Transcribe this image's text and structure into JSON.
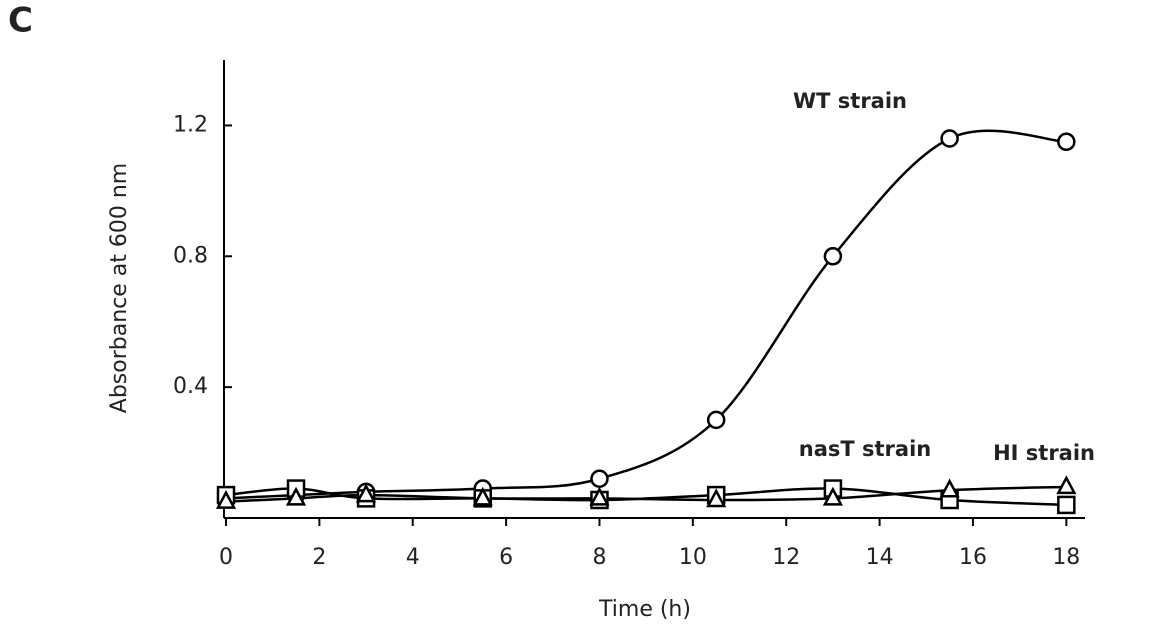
{
  "chart_data": {
    "type": "line",
    "panel_label": "C",
    "x_label": "Time (h)",
    "y_label": "Absorbance at 600 nm",
    "x": [
      0,
      1.5,
      3,
      5.5,
      8,
      10.5,
      13,
      15.5,
      18
    ],
    "series": [
      {
        "name": "WT strain",
        "color": "#000000",
        "marker": "circle",
        "values": [
          0.06,
          0.07,
          0.08,
          0.09,
          0.12,
          0.3,
          0.8,
          1.16,
          1.15
        ]
      },
      {
        "name": "nasT strain",
        "color": "#000000",
        "marker": "square",
        "values": [
          0.07,
          0.09,
          0.06,
          0.06,
          0.055,
          0.07,
          0.09,
          0.055,
          0.04
        ]
      },
      {
        "name": "HI strain",
        "color": "#000000",
        "marker": "triangle",
        "values": [
          0.05,
          0.06,
          0.07,
          0.06,
          0.06,
          0.055,
          0.06,
          0.085,
          0.095
        ]
      }
    ],
    "xlim": [
      0,
      18.4
    ],
    "ylim": [
      0,
      1.4
    ],
    "xticks": [
      0,
      2,
      4,
      6,
      8,
      10,
      12,
      14,
      16,
      18
    ],
    "yticks": [
      0.4,
      0.8,
      1.2
    ]
  }
}
